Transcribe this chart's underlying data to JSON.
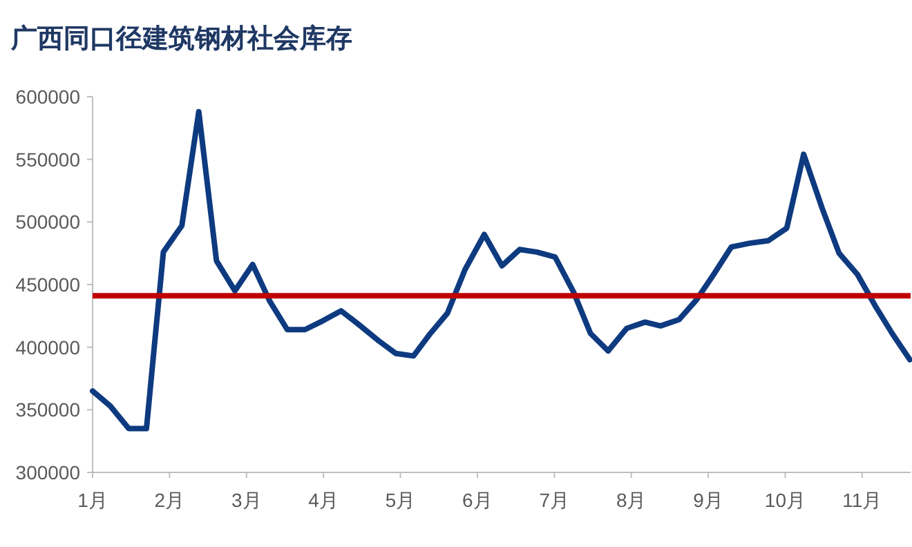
{
  "chart_data": {
    "type": "line",
    "title": "广西同口径建筑钢材社会库存",
    "x": [
      1.0,
      1.23,
      1.47,
      1.7,
      1.92,
      2.16,
      2.38,
      2.61,
      2.85,
      3.08,
      3.3,
      3.53,
      3.76,
      3.99,
      4.23,
      4.46,
      4.72,
      4.94,
      5.17,
      5.39,
      5.61,
      5.84,
      6.09,
      6.32,
      6.55,
      6.77,
      7.01,
      7.25,
      7.47,
      7.7,
      7.94,
      8.18,
      8.38,
      8.62,
      8.85,
      9.07,
      9.3,
      9.54,
      9.78,
      10.02,
      10.24,
      10.48,
      10.7,
      10.94,
      11.17,
      11.39,
      11.62
    ],
    "series": [
      {
        "color": "#0e3a80",
        "values": [
          365000,
          353000,
          335000,
          335000,
          476000,
          497000,
          588000,
          469000,
          445000,
          466000,
          437000,
          414000,
          414000,
          421000,
          429000,
          418000,
          405000,
          395000,
          393000,
          411000,
          427000,
          462000,
          490000,
          465000,
          478000,
          476000,
          472000,
          444000,
          411000,
          397000,
          415000,
          420000,
          417000,
          422000,
          438000,
          458000,
          480000,
          483000,
          485000,
          495000,
          554000,
          511000,
          475000,
          458000,
          433000,
          411000,
          390000
        ]
      }
    ],
    "xlim": [
      1,
      11.63
    ],
    "xticks": [
      {
        "value": 1,
        "label": "1月"
      },
      {
        "value": 2,
        "label": "2月"
      },
      {
        "value": 3,
        "label": "3月"
      },
      {
        "value": 4,
        "label": "4月"
      },
      {
        "value": 5,
        "label": "5月"
      },
      {
        "value": 6,
        "label": "6月"
      },
      {
        "value": 7,
        "label": "7月"
      },
      {
        "value": 8,
        "label": "8月"
      },
      {
        "value": 9,
        "label": "9月"
      },
      {
        "value": 10,
        "label": "10月"
      },
      {
        "value": 11,
        "label": "11月"
      }
    ],
    "ylim": [
      300000,
      600000
    ],
    "yticks": [
      300000,
      350000,
      400000,
      450000,
      500000,
      550000,
      600000
    ],
    "ref_lines": [
      {
        "axis": "y",
        "value": 441000,
        "color": "#c00000"
      }
    ]
  }
}
